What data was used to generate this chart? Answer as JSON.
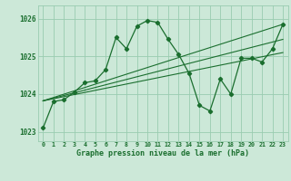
{
  "title": "Graphe pression niveau de la mer (hPa)",
  "bg_color": "#cce8d8",
  "grid_color": "#99ccb0",
  "line_color": "#1a6e2e",
  "xlim": [
    -0.5,
    23.5
  ],
  "ylim": [
    1022.75,
    1026.35
  ],
  "yticks": [
    1023,
    1024,
    1025,
    1026
  ],
  "xtick_labels": [
    "0",
    "1",
    "2",
    "3",
    "4",
    "5",
    "6",
    "7",
    "8",
    "9",
    "10",
    "11",
    "12",
    "13",
    "14",
    "15",
    "16",
    "17",
    "18",
    "19",
    "20",
    "21",
    "22",
    "23"
  ],
  "series1_x": [
    0,
    1,
    2,
    3,
    4,
    5,
    6,
    7,
    8,
    9,
    10,
    11,
    12,
    13,
    14,
    15,
    16,
    17,
    18,
    19,
    20,
    21,
    22,
    23
  ],
  "series1_y": [
    1023.1,
    1023.8,
    1023.85,
    1024.05,
    1024.3,
    1024.35,
    1024.65,
    1025.5,
    1025.2,
    1025.8,
    1025.95,
    1025.9,
    1025.45,
    1025.05,
    1024.55,
    1023.7,
    1023.55,
    1024.4,
    1024.0,
    1024.95,
    1024.95,
    1024.85,
    1025.2,
    1025.85
  ],
  "trend1_x": [
    0,
    23
  ],
  "trend1_y": [
    1023.82,
    1025.85
  ],
  "trend2_x": [
    0,
    23
  ],
  "trend2_y": [
    1023.82,
    1025.45
  ],
  "trend3_x": [
    0,
    23
  ],
  "trend3_y": [
    1023.82,
    1025.1
  ]
}
